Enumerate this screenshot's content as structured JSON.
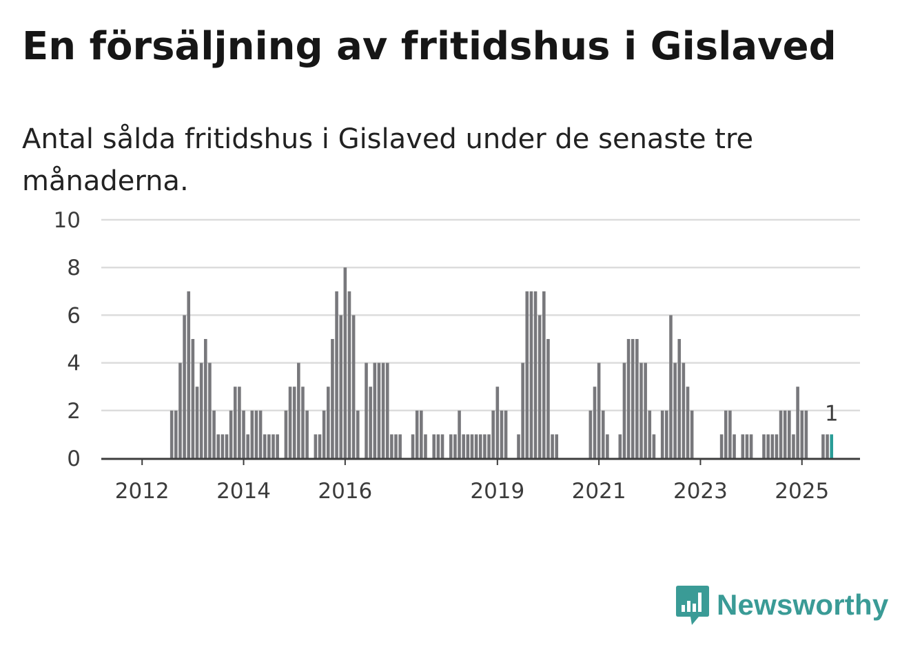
{
  "title": "En försäljning av fritidshus i Gislaved",
  "subtitle": "Antal sålda fritidshus i Gislaved under de senaste tre månaderna.",
  "logo": {
    "text": "Newsworthy",
    "icon": "newsworthy-logo-icon",
    "color": "#3a9b96"
  },
  "colors": {
    "bar": "#78787c",
    "highlight": "#2a9d97",
    "grid": "#dcdcdc",
    "axis": "#3c3c3c"
  },
  "chart_data": {
    "type": "bar",
    "title": "",
    "xlabel": "",
    "ylabel": "",
    "ylim": [
      0,
      10
    ],
    "yticks": [
      "0",
      "2",
      "4",
      "6",
      "8",
      "10"
    ],
    "xticks": [
      "2012",
      "2014",
      "2016",
      "2019",
      "2021",
      "2023",
      "2025"
    ],
    "grid": true,
    "start": "2011-10",
    "last_label": "1",
    "values": [
      0,
      0,
      0,
      0,
      0,
      0,
      0,
      0,
      0,
      0,
      2,
      2,
      4,
      6,
      7,
      5,
      3,
      4,
      5,
      4,
      2,
      1,
      1,
      1,
      2,
      3,
      3,
      2,
      1,
      2,
      2,
      2,
      1,
      1,
      1,
      1,
      0,
      2,
      3,
      3,
      4,
      3,
      2,
      0,
      1,
      1,
      2,
      3,
      5,
      7,
      6,
      8,
      7,
      6,
      2,
      0,
      4,
      3,
      4,
      4,
      4,
      4,
      1,
      1,
      1,
      0,
      0,
      1,
      2,
      2,
      1,
      0,
      1,
      1,
      1,
      0,
      1,
      1,
      2,
      1,
      1,
      1,
      1,
      1,
      1,
      1,
      2,
      3,
      2,
      2,
      0,
      0,
      1,
      4,
      7,
      7,
      7,
      6,
      7,
      5,
      1,
      1,
      0,
      0,
      0,
      0,
      0,
      0,
      0,
      2,
      3,
      4,
      2,
      1,
      0,
      0,
      1,
      4,
      5,
      5,
      5,
      4,
      4,
      2,
      1,
      0,
      2,
      2,
      6,
      4,
      5,
      4,
      3,
      2,
      0,
      0,
      0,
      0,
      0,
      0,
      1,
      2,
      2,
      1,
      0,
      1,
      1,
      1,
      0,
      0,
      1,
      1,
      1,
      1,
      2,
      2,
      2,
      1,
      3,
      2,
      2,
      0,
      0,
      0,
      1,
      1,
      1
    ]
  }
}
